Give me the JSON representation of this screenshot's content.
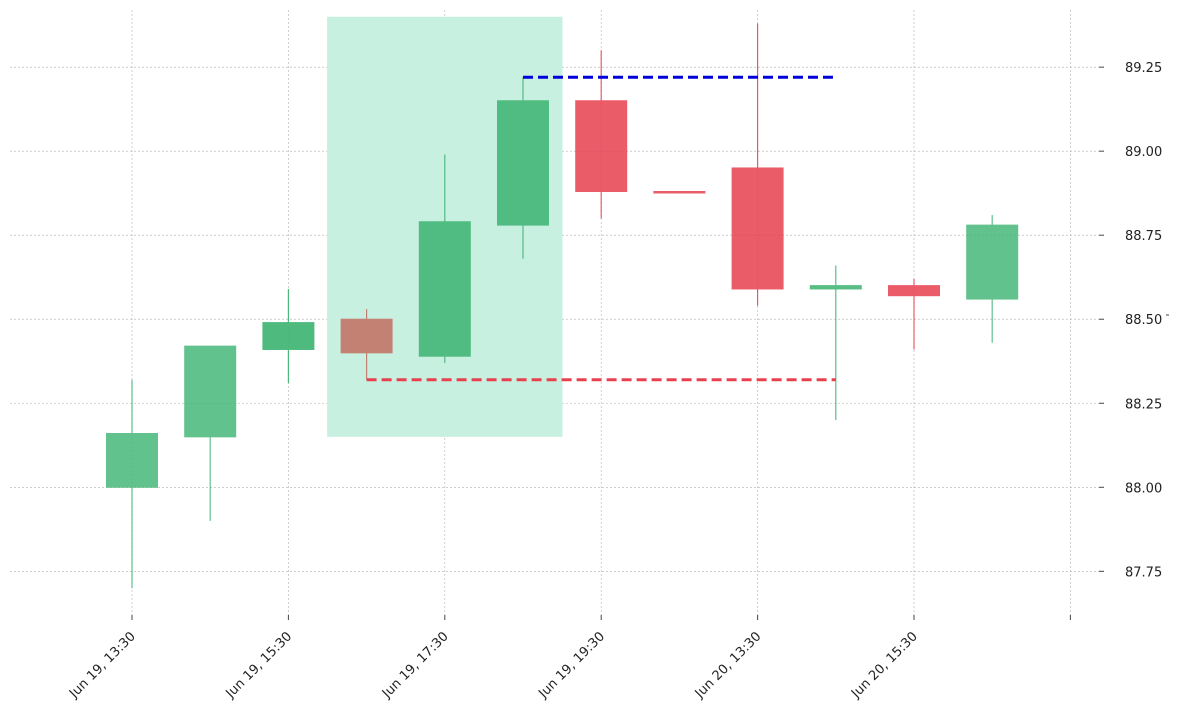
{
  "chart_data": {
    "type": "candlestick",
    "x_tick_labels": [
      "Jun 19, 13:30",
      "Jun 19, 15:30",
      "Jun 19, 17:30",
      "Jun 19, 19:30",
      "Jun 20, 13:30",
      "Jun 20, 15:30"
    ],
    "y_ticks": [
      87.75,
      88.0,
      88.25,
      88.5,
      88.75,
      89.0,
      89.25
    ],
    "y_tick_labels": [
      "87.75",
      "88.00",
      "88.25",
      "88.50",
      "88.75",
      "89.00",
      "89.25"
    ],
    "ylim": [
      87.62,
      89.42
    ],
    "grid": true,
    "candles": [
      {
        "open": 88.0,
        "close": 88.16,
        "high": 88.32,
        "low": 87.7,
        "color": "#3cb371",
        "alpha": 0.8
      },
      {
        "open": 88.15,
        "close": 88.42,
        "high": 88.42,
        "low": 87.9,
        "color": "#3cb371",
        "alpha": 0.8
      },
      {
        "open": 88.41,
        "close": 88.49,
        "high": 88.59,
        "low": 88.31,
        "color": "#3cb371",
        "alpha": 0.9
      },
      {
        "open": 88.5,
        "close": 88.4,
        "high": 88.53,
        "low": 88.32,
        "color": "#c0392b",
        "alpha": 0.6
      },
      {
        "open": 88.39,
        "close": 88.79,
        "high": 88.99,
        "low": 88.37,
        "color": "#3cb371",
        "alpha": 0.85
      },
      {
        "open": 88.78,
        "close": 89.15,
        "high": 89.22,
        "low": 88.68,
        "color": "#3cb371",
        "alpha": 0.85
      },
      {
        "open": 89.15,
        "close": 88.88,
        "high": 89.3,
        "low": 88.8,
        "color": "#e8404f",
        "alpha": 0.85
      },
      {
        "open": 88.88,
        "close": 88.88,
        "high": 88.88,
        "low": 88.88,
        "color": "#e8404f",
        "alpha": 0.85
      },
      {
        "open": 88.95,
        "close": 88.59,
        "high": 89.38,
        "low": 88.54,
        "color": "#e8404f",
        "alpha": 0.85
      },
      {
        "open": 88.59,
        "close": 88.6,
        "high": 88.66,
        "low": 88.2,
        "color": "#3cb371",
        "alpha": 0.85
      },
      {
        "open": 88.6,
        "close": 88.57,
        "high": 88.62,
        "low": 88.41,
        "color": "#e8404f",
        "alpha": 0.85
      },
      {
        "open": 88.56,
        "close": 88.78,
        "high": 88.81,
        "low": 88.43,
        "color": "#3cb371",
        "alpha": 0.8
      }
    ],
    "highlight_zone": {
      "from_candle": 3,
      "to_candle": 5,
      "y_low": 88.15,
      "y_high": 89.4,
      "color": "#c8f0e0"
    },
    "levels": [
      {
        "value": 89.22,
        "from_candle": 5,
        "to_candle": 9,
        "color": "#0000dd",
        "style": "dashed"
      },
      {
        "value": 88.32,
        "from_candle": 3,
        "to_candle": 9,
        "color": "#e8404f",
        "style": "dashed"
      }
    ]
  }
}
